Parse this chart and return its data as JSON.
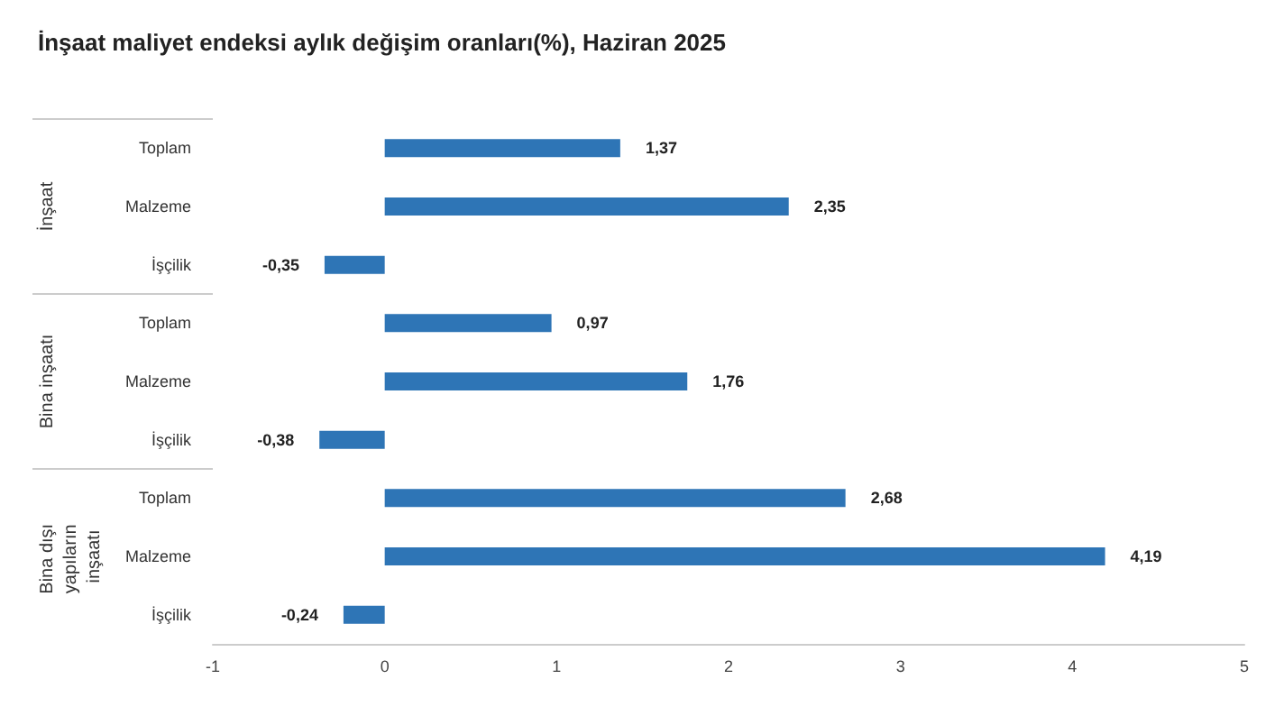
{
  "chart_data": {
    "type": "bar",
    "orientation": "horizontal",
    "title": "İnşaat maliyet endeksi aylık değişim oranları(%), Haziran 2025",
    "categories": [
      "Toplam",
      "Malzeme",
      "İşçilik",
      "Toplam",
      "Malzeme",
      "İşçilik",
      "Toplam",
      "Malzeme",
      "İşçilik"
    ],
    "values": [
      1.37,
      2.35,
      -0.35,
      0.97,
      1.76,
      -0.38,
      2.68,
      4.19,
      -0.24
    ],
    "value_labels": [
      "1,37",
      "2,35",
      "-0,35",
      "0,97",
      "1,76",
      "-0,38",
      "2,68",
      "4,19",
      "-0,24"
    ],
    "color": "#2e75b6",
    "annotations": [
      "İnşaat",
      "Bina inşaatı",
      "Bina dışı yapıların inşaatı"
    ],
    "xlim": [
      -1,
      5
    ],
    "xticks": [
      -1,
      0,
      1,
      2,
      3,
      4,
      5
    ],
    "grid": false
  }
}
